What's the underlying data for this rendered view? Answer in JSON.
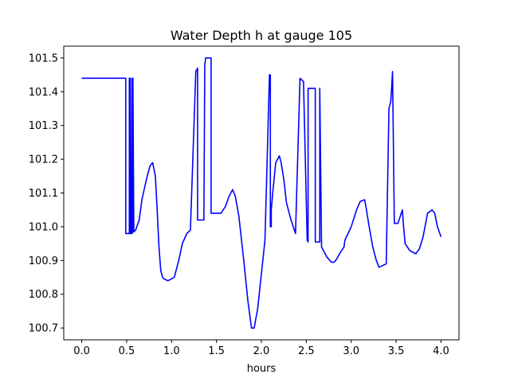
{
  "chart_data": {
    "type": "line",
    "title": "Water Depth h at gauge 105",
    "xlabel": "hours",
    "ylabel": "",
    "xlim": [
      -0.2,
      4.2
    ],
    "ylim": [
      100.665,
      101.535
    ],
    "xticks": [
      "0.0",
      "0.5",
      "1.0",
      "1.5",
      "2.0",
      "2.5",
      "3.0",
      "3.5",
      "4.0"
    ],
    "yticks": [
      "100.7",
      "100.8",
      "100.9",
      "101.0",
      "101.1",
      "101.2",
      "101.3",
      "101.4",
      "101.5"
    ],
    "grid": false,
    "legend": "none",
    "series": [
      {
        "color": "#0000ff",
        "x": [
          0.0,
          0.48,
          0.49,
          0.49,
          0.53,
          0.53,
          0.54,
          0.54,
          0.55,
          0.56,
          0.56,
          0.57,
          0.57,
          0.58,
          0.6,
          0.64,
          0.67,
          0.72,
          0.76,
          0.79,
          0.82,
          0.84,
          0.86,
          0.88,
          0.9,
          0.92,
          0.96,
          1.03,
          1.08,
          1.12,
          1.17,
          1.21,
          1.27,
          1.29,
          1.29,
          1.36,
          1.37,
          1.37,
          1.38,
          1.44,
          1.44,
          1.55,
          1.6,
          1.64,
          1.68,
          1.71,
          1.75,
          1.8,
          1.85,
          1.89,
          1.92,
          1.96,
          2.0,
          2.04,
          2.09,
          2.1,
          2.1,
          2.11,
          2.11,
          2.13,
          2.16,
          2.2,
          2.22,
          2.25,
          2.28,
          2.33,
          2.38,
          2.43,
          2.47,
          2.47,
          2.51,
          2.52,
          2.52,
          2.6,
          2.6,
          2.65,
          2.65,
          2.67,
          2.73,
          2.78,
          2.81,
          2.84,
          2.87,
          2.92,
          2.93,
          3.0,
          3.06,
          3.1,
          3.15,
          3.17,
          3.2,
          3.24,
          3.28,
          3.31,
          3.35,
          3.39,
          3.42,
          3.44,
          3.45,
          3.46,
          3.48,
          3.52,
          3.57,
          3.57,
          3.58,
          3.6,
          3.65,
          3.68,
          3.72,
          3.76,
          3.8,
          3.85,
          3.9,
          3.93,
          3.96,
          4.0
        ],
        "y": [
          101.44,
          101.44,
          101.44,
          100.98,
          100.98,
          101.44,
          101.44,
          100.98,
          100.98,
          101.44,
          100.98,
          100.985,
          101.44,
          100.985,
          100.99,
          101.02,
          101.08,
          101.14,
          101.18,
          101.19,
          101.15,
          101.05,
          100.94,
          100.87,
          100.85,
          100.845,
          100.84,
          100.85,
          100.9,
          100.95,
          100.98,
          100.99,
          101.46,
          101.47,
          101.02,
          101.02,
          101.48,
          101.48,
          101.5,
          101.5,
          101.04,
          101.04,
          101.06,
          101.09,
          101.11,
          101.09,
          101.03,
          100.91,
          100.78,
          100.7,
          100.7,
          100.76,
          100.86,
          100.96,
          101.45,
          101.45,
          101.0,
          101.0,
          101.05,
          101.11,
          101.19,
          101.21,
          101.19,
          101.14,
          101.07,
          101.02,
          100.98,
          101.44,
          101.43,
          101.42,
          100.96,
          100.955,
          101.41,
          101.41,
          100.955,
          100.955,
          101.41,
          100.94,
          100.91,
          100.895,
          100.895,
          100.905,
          100.92,
          100.94,
          100.96,
          101.0,
          101.05,
          101.075,
          101.08,
          101.05,
          101.0,
          100.94,
          100.9,
          100.88,
          100.885,
          100.89,
          101.35,
          101.37,
          101.41,
          101.46,
          101.01,
          101.01,
          101.05,
          101.05,
          101.01,
          100.95,
          100.93,
          100.925,
          100.92,
          100.935,
          100.97,
          101.04,
          101.05,
          101.04,
          101.0,
          100.97
        ]
      }
    ]
  }
}
